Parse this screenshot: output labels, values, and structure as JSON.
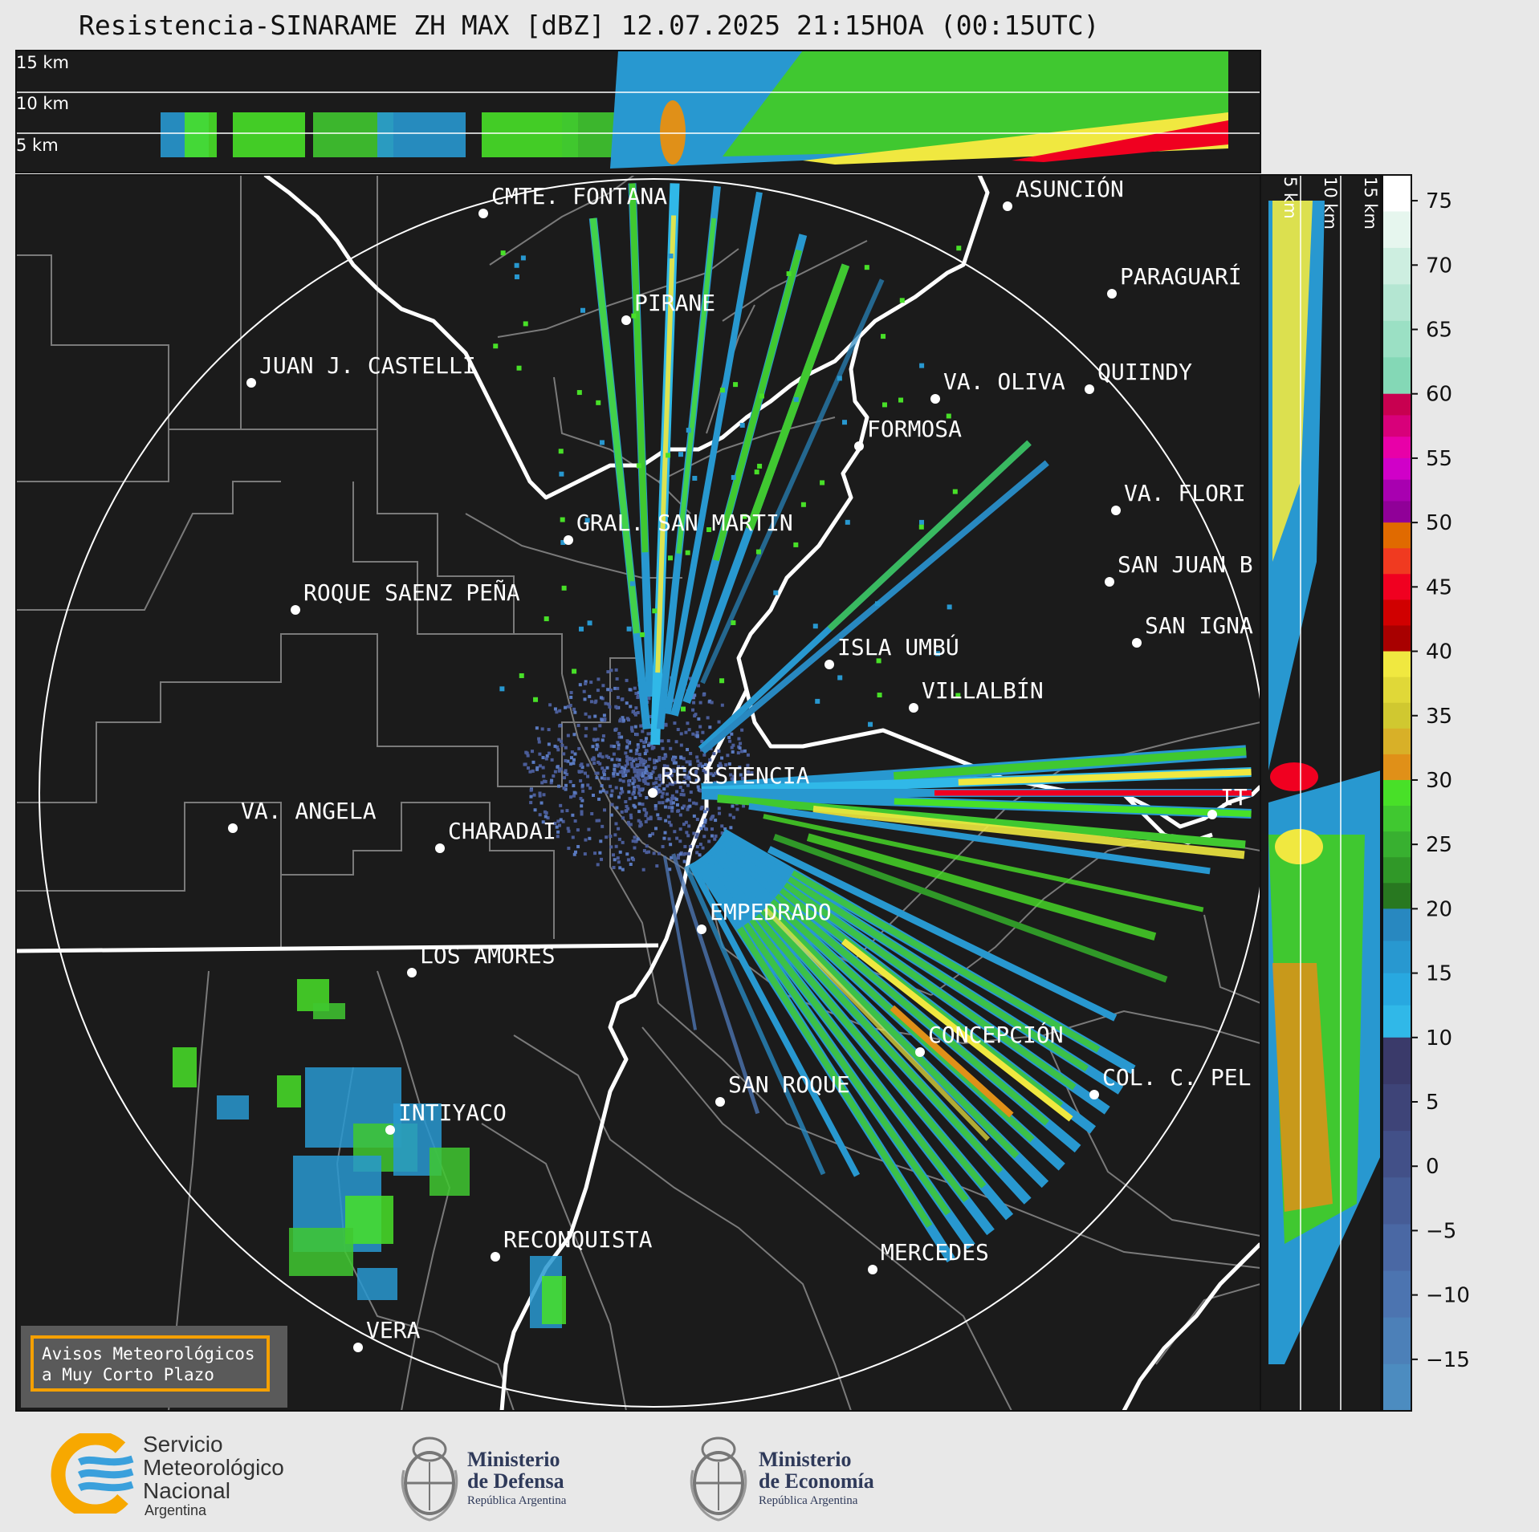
{
  "title": "Resistencia-SINARAME ZH MAX [dBZ] 12.07.2025 21:15HOA (00:15UTC)",
  "top_profile": {
    "labels": [
      "15 km",
      "10 km",
      "5 km"
    ]
  },
  "side_profile": {
    "labels": [
      "5 km",
      "10 km",
      "15 km"
    ]
  },
  "colorbar": {
    "ticks": [
      "75",
      "70",
      "65",
      "60",
      "55",
      "50",
      "45",
      "40",
      "35",
      "30",
      "25",
      "20",
      "15",
      "10",
      "5",
      "0",
      "−5",
      "−10",
      "−15"
    ],
    "bands": [
      {
        "from": 60,
        "to": 77,
        "colors": [
          "#ffffff",
          "#e6f6ee",
          "#cdeee0",
          "#b4e6d2",
          "#9be0c4",
          "#84d8b6"
        ]
      },
      {
        "from": 50,
        "to": 60,
        "colors": [
          "#c80050",
          "#d8007a",
          "#e800a8",
          "#d000c8",
          "#a800b0",
          "#900098"
        ]
      },
      {
        "from": 40,
        "to": 50,
        "colors": [
          "#e06a00",
          "#f03a20",
          "#f00020",
          "#d00000",
          "#a80000"
        ]
      },
      {
        "from": 30,
        "to": 40,
        "colors": [
          "#f0e840",
          "#e0d838",
          "#d0c830",
          "#d8b028",
          "#e09018"
        ]
      },
      {
        "from": 20,
        "to": 30,
        "colors": [
          "#48e028",
          "#40c830",
          "#38b030",
          "#309828",
          "#287820"
        ]
      },
      {
        "from": 10,
        "to": 20,
        "colors": [
          "#2888c0",
          "#2898d0",
          "#28a8e0",
          "#30b8e8"
        ]
      },
      {
        "from": -19,
        "to": 10,
        "colors": [
          "#3a3a6a",
          "#3e4478",
          "#425088",
          "#465c96",
          "#4a68a4",
          "#4c74b0",
          "#4c80b8",
          "#4c8cc0"
        ]
      }
    ]
  },
  "cities": [
    {
      "name": "CMTE. FONTANA"
    },
    {
      "name": "ASUNCIÓN"
    },
    {
      "name": "PARAGUARÍ"
    },
    {
      "name": "PIRANE"
    },
    {
      "name": "JUAN J. CASTELLI"
    },
    {
      "name": "VA. OLIVA"
    },
    {
      "name": "QUIINDY"
    },
    {
      "name": "FORMOSA"
    },
    {
      "name": "VA. FLORI"
    },
    {
      "name": "GRAL. SAN MARTIN"
    },
    {
      "name": "SAN JUAN B"
    },
    {
      "name": "ROQUE SAENZ PEÑA"
    },
    {
      "name": "SAN IGNA"
    },
    {
      "name": "ISLA UMBÚ"
    },
    {
      "name": "VILLALBÍN"
    },
    {
      "name": "RESISTENCIA"
    },
    {
      "name": "VA. ANGELA"
    },
    {
      "name": "CHARADAI"
    },
    {
      "name": "IT"
    },
    {
      "name": "EMPEDRADO"
    },
    {
      "name": "LOS AMORES"
    },
    {
      "name": "CONCEPCIÓN"
    },
    {
      "name": "SAN ROQUE"
    },
    {
      "name": "COL. C. PEL"
    },
    {
      "name": "INTIYACO"
    },
    {
      "name": "RECONQUISTA"
    },
    {
      "name": "MERCEDES"
    },
    {
      "name": "VERA"
    }
  ],
  "aviso": {
    "line1": "Avisos Meteorológicos",
    "line2": "a Muy Corto Plazo"
  },
  "logos": {
    "smn": {
      "line1": "Servicio",
      "line2": "Meteorológico",
      "line3": "Nacional",
      "sub": "Argentina"
    },
    "defensa": {
      "line1": "Ministerio",
      "line2": "de Defensa",
      "sub": "República Argentina"
    },
    "economia": {
      "line1": "Ministerio",
      "line2": "de Economía",
      "sub": "República Argentina"
    }
  }
}
